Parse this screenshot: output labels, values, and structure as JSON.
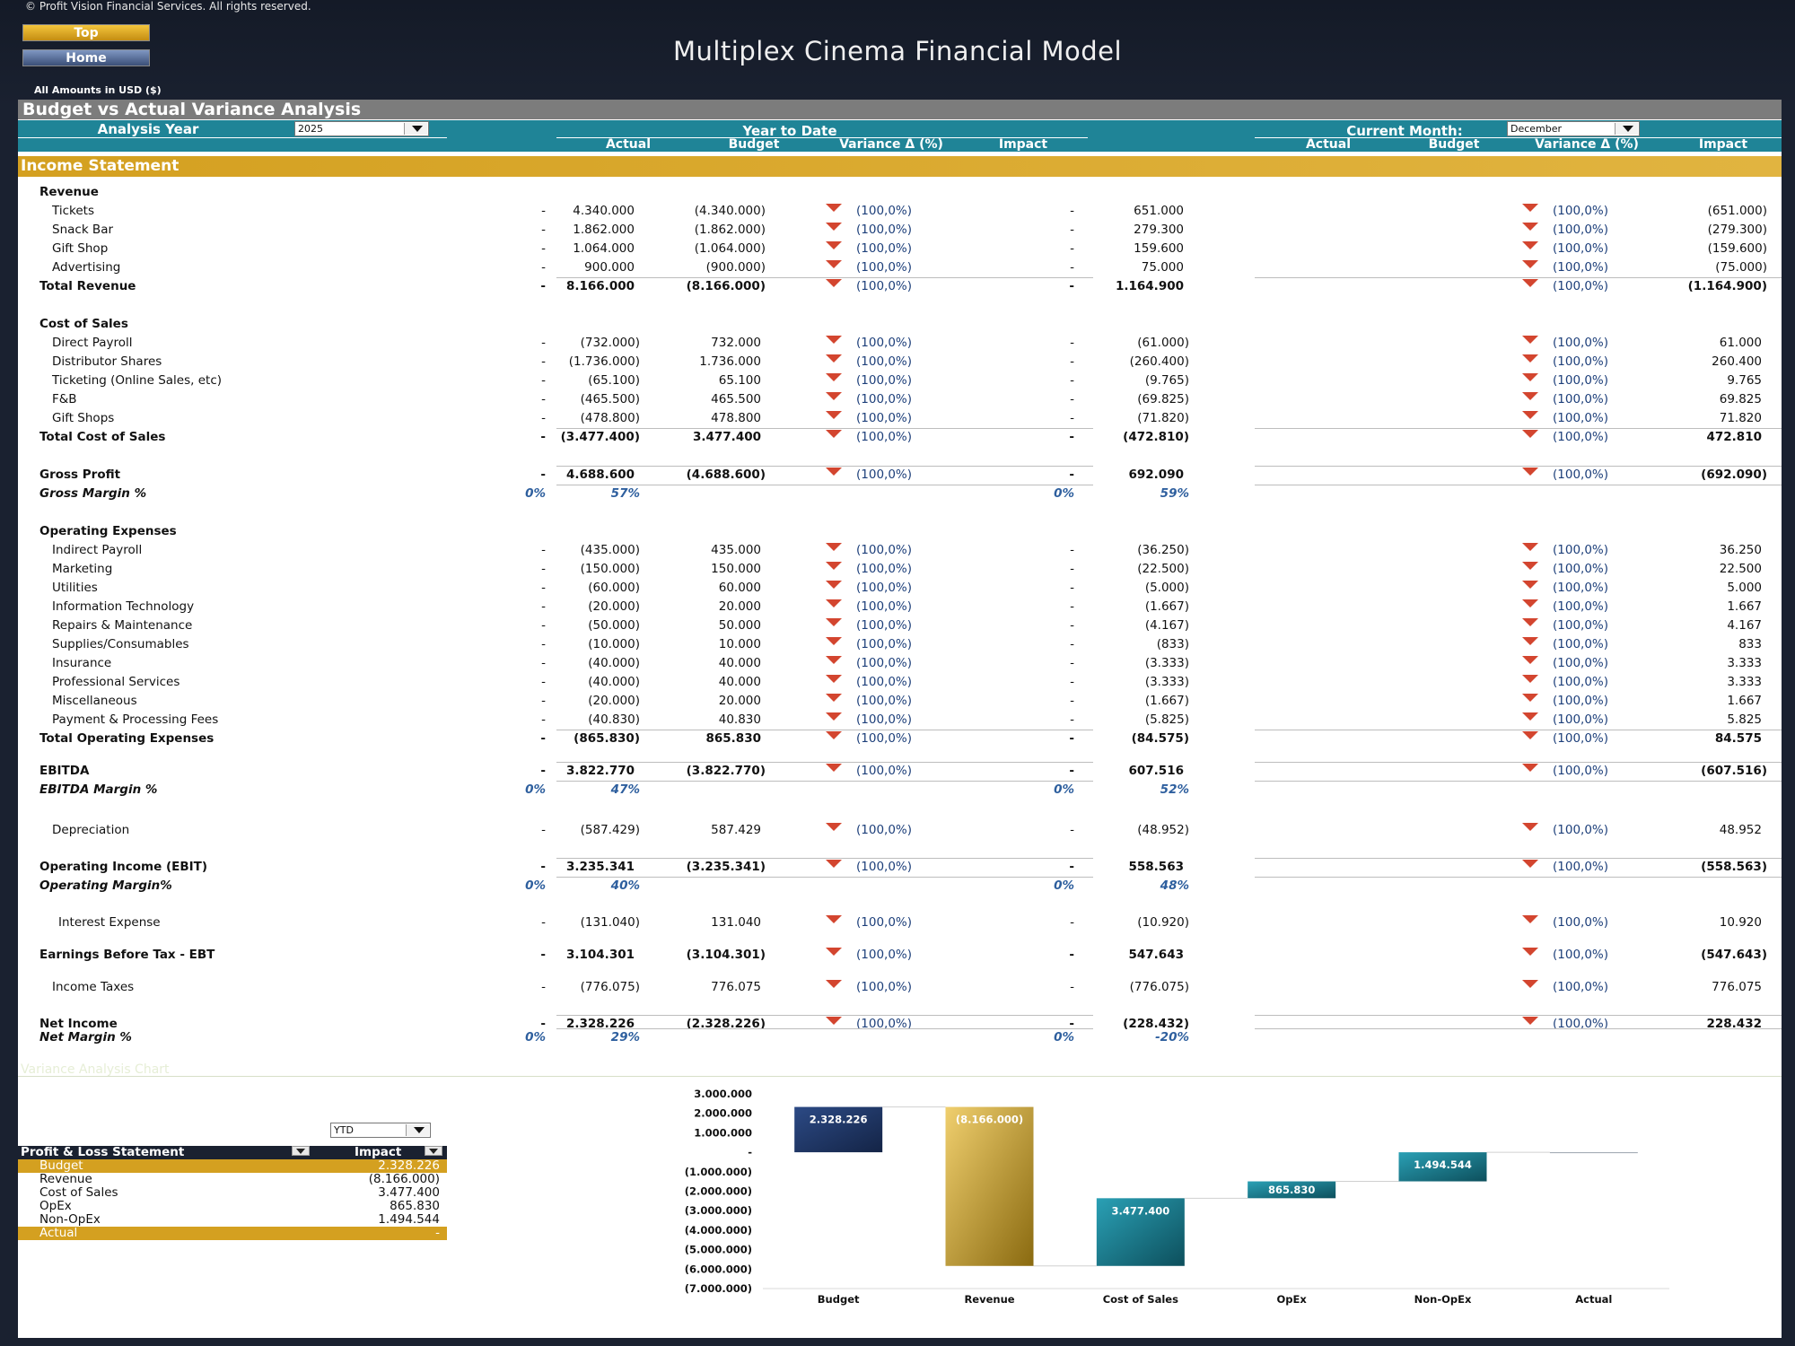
{
  "header": {
    "copyright": "© Profit Vision Financial Services. All rights reserved.",
    "top_button": "Top",
    "home_button": "Home",
    "title": "Multiplex Cinema Financial Model",
    "amounts_note": "All Amounts in  USD ($)"
  },
  "section_title": "Budget vs Actual Variance Analysis",
  "controls": {
    "analysis_year_label": "Analysis Year",
    "analysis_year_value": "2025",
    "ytd_label": "Year to Date",
    "current_month_label": "Current Month:",
    "current_month_value": "December"
  },
  "columns": {
    "actual": "Actual",
    "budget": "Budget",
    "variance": "Variance Δ  (%)",
    "impact": "Impact"
  },
  "income_statement_title": "Income Statement",
  "rows": [
    {
      "label": "Revenue",
      "style": "head"
    },
    {
      "label": "Tickets",
      "style": "item",
      "ytd_actual": "-",
      "ytd_budget": "4.340.000",
      "ytd_var": "(100,0%)",
      "ytd_impact": "(4.340.000)",
      "m_actual": "-",
      "m_budget": "651.000",
      "m_var": "(100,0%)",
      "m_impact": "(651.000)"
    },
    {
      "label": "Snack Bar",
      "style": "item",
      "ytd_actual": "-",
      "ytd_budget": "1.862.000",
      "ytd_var": "(100,0%)",
      "ytd_impact": "(1.862.000)",
      "m_actual": "-",
      "m_budget": "279.300",
      "m_var": "(100,0%)",
      "m_impact": "(279.300)"
    },
    {
      "label": "Gift Shop",
      "style": "item",
      "ytd_actual": "-",
      "ytd_budget": "1.064.000",
      "ytd_var": "(100,0%)",
      "ytd_impact": "(1.064.000)",
      "m_actual": "-",
      "m_budget": "159.600",
      "m_var": "(100,0%)",
      "m_impact": "(159.600)"
    },
    {
      "label": "Advertising",
      "style": "item",
      "ytd_actual": "-",
      "ytd_budget": "900.000",
      "ytd_var": "(100,0%)",
      "ytd_impact": "(900.000)",
      "m_actual": "-",
      "m_budget": "75.000",
      "m_var": "(100,0%)",
      "m_impact": "(75.000)"
    },
    {
      "label": "Total Revenue",
      "style": "total",
      "ytd_actual": "-",
      "ytd_budget": "8.166.000",
      "ytd_var": "(100,0%)",
      "ytd_impact": "(8.166.000)",
      "m_actual": "-",
      "m_budget": "1.164.900",
      "m_var": "(100,0%)",
      "m_impact": "(1.164.900)"
    },
    {
      "label": "Cost of Sales",
      "style": "head"
    },
    {
      "label": "Direct Payroll",
      "style": "item",
      "ytd_actual": "-",
      "ytd_budget": "(732.000)",
      "ytd_var": "(100,0%)",
      "ytd_impact": "732.000",
      "m_actual": "-",
      "m_budget": "(61.000)",
      "m_var": "(100,0%)",
      "m_impact": "61.000"
    },
    {
      "label": "Distributor Shares",
      "style": "item",
      "ytd_actual": "-",
      "ytd_budget": "(1.736.000)",
      "ytd_var": "(100,0%)",
      "ytd_impact": "1.736.000",
      "m_actual": "-",
      "m_budget": "(260.400)",
      "m_var": "(100,0%)",
      "m_impact": "260.400"
    },
    {
      "label": "Ticketing (Online Sales, etc)",
      "style": "item",
      "ytd_actual": "-",
      "ytd_budget": "(65.100)",
      "ytd_var": "(100,0%)",
      "ytd_impact": "65.100",
      "m_actual": "-",
      "m_budget": "(9.765)",
      "m_var": "(100,0%)",
      "m_impact": "9.765"
    },
    {
      "label": "F&B",
      "style": "item",
      "ytd_actual": "-",
      "ytd_budget": "(465.500)",
      "ytd_var": "(100,0%)",
      "ytd_impact": "465.500",
      "m_actual": "-",
      "m_budget": "(69.825)",
      "m_var": "(100,0%)",
      "m_impact": "69.825"
    },
    {
      "label": "Gift Shops",
      "style": "item",
      "ytd_actual": "-",
      "ytd_budget": "(478.800)",
      "ytd_var": "(100,0%)",
      "ytd_impact": "478.800",
      "m_actual": "-",
      "m_budget": "(71.820)",
      "m_var": "(100,0%)",
      "m_impact": "71.820"
    },
    {
      "label": "Total Cost of Sales",
      "style": "total",
      "ytd_actual": "-",
      "ytd_budget": "(3.477.400)",
      "ytd_var": "(100,0%)",
      "ytd_impact": "3.477.400",
      "m_actual": "-",
      "m_budget": "(472.810)",
      "m_var": "(100,0%)",
      "m_impact": "472.810"
    },
    {
      "label": "Gross Profit",
      "style": "total",
      "ytd_actual": "-",
      "ytd_budget": "4.688.600",
      "ytd_var": "(100,0%)",
      "ytd_impact": "(4.688.600)",
      "m_actual": "-",
      "m_budget": "692.090",
      "m_var": "(100,0%)",
      "m_impact": "(692.090)"
    },
    {
      "label": "Gross Margin %",
      "style": "pct",
      "ytd_actual": "0%",
      "ytd_budget": "57%",
      "m_actual": "0%",
      "m_budget": "59%"
    },
    {
      "label": "Operating Expenses",
      "style": "head"
    },
    {
      "label": "Indirect Payroll",
      "style": "item",
      "ytd_actual": "-",
      "ytd_budget": "(435.000)",
      "ytd_var": "(100,0%)",
      "ytd_impact": "435.000",
      "m_actual": "-",
      "m_budget": "(36.250)",
      "m_var": "(100,0%)",
      "m_impact": "36.250"
    },
    {
      "label": "Marketing",
      "style": "item",
      "ytd_actual": "-",
      "ytd_budget": "(150.000)",
      "ytd_var": "(100,0%)",
      "ytd_impact": "150.000",
      "m_actual": "-",
      "m_budget": "(22.500)",
      "m_var": "(100,0%)",
      "m_impact": "22.500"
    },
    {
      "label": "Utilities",
      "style": "item",
      "ytd_actual": "-",
      "ytd_budget": "(60.000)",
      "ytd_var": "(100,0%)",
      "ytd_impact": "60.000",
      "m_actual": "-",
      "m_budget": "(5.000)",
      "m_var": "(100,0%)",
      "m_impact": "5.000"
    },
    {
      "label": "Information Technology",
      "style": "item",
      "ytd_actual": "-",
      "ytd_budget": "(20.000)",
      "ytd_var": "(100,0%)",
      "ytd_impact": "20.000",
      "m_actual": "-",
      "m_budget": "(1.667)",
      "m_var": "(100,0%)",
      "m_impact": "1.667"
    },
    {
      "label": "Repairs & Maintenance",
      "style": "item",
      "ytd_actual": "-",
      "ytd_budget": "(50.000)",
      "ytd_var": "(100,0%)",
      "ytd_impact": "50.000",
      "m_actual": "-",
      "m_budget": "(4.167)",
      "m_var": "(100,0%)",
      "m_impact": "4.167"
    },
    {
      "label": "Supplies/Consumables",
      "style": "item",
      "ytd_actual": "-",
      "ytd_budget": "(10.000)",
      "ytd_var": "(100,0%)",
      "ytd_impact": "10.000",
      "m_actual": "-",
      "m_budget": "(833)",
      "m_var": "(100,0%)",
      "m_impact": "833"
    },
    {
      "label": "Insurance",
      "style": "item",
      "ytd_actual": "-",
      "ytd_budget": "(40.000)",
      "ytd_var": "(100,0%)",
      "ytd_impact": "40.000",
      "m_actual": "-",
      "m_budget": "(3.333)",
      "m_var": "(100,0%)",
      "m_impact": "3.333"
    },
    {
      "label": "Professional Services",
      "style": "item",
      "ytd_actual": "-",
      "ytd_budget": "(40.000)",
      "ytd_var": "(100,0%)",
      "ytd_impact": "40.000",
      "m_actual": "-",
      "m_budget": "(3.333)",
      "m_var": "(100,0%)",
      "m_impact": "3.333"
    },
    {
      "label": "Miscellaneous",
      "style": "item",
      "ytd_actual": "-",
      "ytd_budget": "(20.000)",
      "ytd_var": "(100,0%)",
      "ytd_impact": "20.000",
      "m_actual": "-",
      "m_budget": "(1.667)",
      "m_var": "(100,0%)",
      "m_impact": "1.667"
    },
    {
      "label": "Payment & Processing Fees",
      "style": "item",
      "ytd_actual": "-",
      "ytd_budget": "(40.830)",
      "ytd_var": "(100,0%)",
      "ytd_impact": "40.830",
      "m_actual": "-",
      "m_budget": "(5.825)",
      "m_var": "(100,0%)",
      "m_impact": "5.825"
    },
    {
      "label": "Total Operating Expenses",
      "style": "total",
      "ytd_actual": "-",
      "ytd_budget": "(865.830)",
      "ytd_var": "(100,0%)",
      "ytd_impact": "865.830",
      "m_actual": "-",
      "m_budget": "(84.575)",
      "m_var": "(100,0%)",
      "m_impact": "84.575"
    },
    {
      "label": "EBITDA",
      "style": "total",
      "ytd_actual": "-",
      "ytd_budget": "3.822.770",
      "ytd_var": "(100,0%)",
      "ytd_impact": "(3.822.770)",
      "m_actual": "-",
      "m_budget": "607.516",
      "m_var": "(100,0%)",
      "m_impact": "(607.516)"
    },
    {
      "label": "EBITDA Margin %",
      "style": "pct",
      "ytd_actual": "0%",
      "ytd_budget": "47%",
      "m_actual": "0%",
      "m_budget": "52%"
    },
    {
      "label": "Depreciation",
      "style": "item",
      "ytd_actual": "-",
      "ytd_budget": "(587.429)",
      "ytd_var": "(100,0%)",
      "ytd_impact": "587.429",
      "m_actual": "-",
      "m_budget": "(48.952)",
      "m_var": "(100,0%)",
      "m_impact": "48.952"
    },
    {
      "label": "Operating Income (EBIT)",
      "style": "total",
      "ytd_actual": "-",
      "ytd_budget": "3.235.341",
      "ytd_var": "(100,0%)",
      "ytd_impact": "(3.235.341)",
      "m_actual": "-",
      "m_budget": "558.563",
      "m_var": "(100,0%)",
      "m_impact": "(558.563)"
    },
    {
      "label": "Operating Margin%",
      "style": "pct",
      "ytd_actual": "0%",
      "ytd_budget": "40%",
      "m_actual": "0%",
      "m_budget": "48%"
    },
    {
      "label": "Interest Expense",
      "style": "item2",
      "ytd_actual": "-",
      "ytd_budget": "(131.040)",
      "ytd_var": "(100,0%)",
      "ytd_impact": "131.040",
      "m_actual": "-",
      "m_budget": "(10.920)",
      "m_var": "(100,0%)",
      "m_impact": "10.920"
    },
    {
      "label": "Earnings Before Tax - EBT",
      "style": "total",
      "ytd_actual": "-",
      "ytd_budget": "3.104.301",
      "ytd_var": "(100,0%)",
      "ytd_impact": "(3.104.301)",
      "m_actual": "-",
      "m_budget": "547.643",
      "m_var": "(100,0%)",
      "m_impact": "(547.643)"
    },
    {
      "label": "Income Taxes",
      "style": "item",
      "ytd_actual": "-",
      "ytd_budget": "(776.075)",
      "ytd_var": "(100,0%)",
      "ytd_impact": "776.075",
      "m_actual": "-",
      "m_budget": "(776.075)",
      "m_var": "(100,0%)",
      "m_impact": "776.075"
    },
    {
      "label": "Net Income",
      "style": "total",
      "ytd_actual": "-",
      "ytd_budget": "2.328.226",
      "ytd_var": "(100,0%)",
      "ytd_impact": "(2.328.226)",
      "m_actual": "-",
      "m_budget": "(228.432)",
      "m_var": "(100,0%)",
      "m_impact": "228.432"
    },
    {
      "label": "Net Margin %",
      "style": "pct",
      "ytd_actual": "0%",
      "ytd_budget": "29%",
      "m_actual": "0%",
      "m_budget": "-20%"
    }
  ],
  "bottom": {
    "faint_title": "Variance Analysis Chart",
    "period_dropdown": "YTD",
    "pl_header_label": "Profit & Loss Statement",
    "pl_header_value": "Impact",
    "pl_rows": [
      {
        "label": "Budget",
        "value": "2.328.226",
        "gold": true
      },
      {
        "label": "Revenue",
        "value": "(8.166.000)",
        "gold": false
      },
      {
        "label": "Cost of Sales",
        "value": "3.477.400",
        "gold": false
      },
      {
        "label": "OpEx",
        "value": "865.830",
        "gold": false
      },
      {
        "label": "Non-OpEx",
        "value": "1.494.544",
        "gold": false
      },
      {
        "label": "Actual",
        "value": "-",
        "gold": true
      }
    ]
  },
  "colors": {
    "teal": "#1f8497",
    "gold": "#d4a020",
    "navy": "#1a2130",
    "down_arrow": "#d3452f"
  },
  "chart_data": {
    "type": "waterfall",
    "categories": [
      "Budget",
      "Revenue",
      "Cost of Sales",
      "OpEx",
      "Non-OpEx",
      "Actual"
    ],
    "values": [
      2328226,
      -8166000,
      3477400,
      865830,
      1494544,
      0
    ],
    "data_labels": [
      "2.328.226",
      "(8.166.000)",
      "3.477.400",
      "865.830",
      "1.494.544",
      ""
    ],
    "y_ticks": [
      "3.000.000",
      "2.000.000",
      "1.000.000",
      "-",
      "(1.000.000)",
      "(2.000.000)",
      "(3.000.000)",
      "(4.000.000)",
      "(5.000.000)",
      "(6.000.000)",
      "(7.000.000)"
    ],
    "y_tick_values": [
      3000000,
      2000000,
      1000000,
      0,
      -1000000,
      -2000000,
      -3000000,
      -4000000,
      -5000000,
      -6000000,
      -7000000
    ],
    "ylim": [
      -7000000,
      3000000
    ],
    "xlabel": "",
    "ylabel": "",
    "grid": false
  }
}
